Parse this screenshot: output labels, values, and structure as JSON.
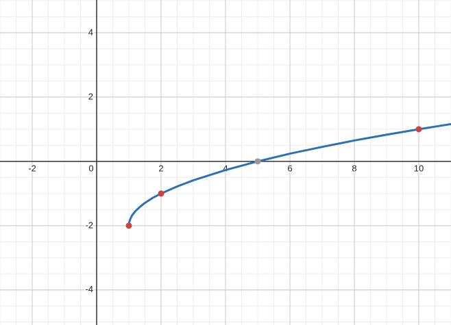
{
  "chart_data": {
    "type": "line",
    "x": [
      1,
      1.01,
      1.05,
      1.1,
      1.2,
      1.35,
      1.5,
      1.75,
      2,
      2.5,
      3,
      4,
      5,
      6,
      7,
      8,
      9,
      10,
      11
    ],
    "values": [
      -2,
      -1.9,
      -1.78,
      -1.68,
      -1.55,
      -1.41,
      -1.29,
      -1.13,
      -1,
      -0.78,
      -0.59,
      -0.27,
      0,
      0.24,
      0.45,
      0.65,
      0.83,
      1,
      1.16
    ],
    "color": "#2d70b3",
    "points": {
      "x": [
        1,
        2,
        5,
        10
      ],
      "values": [
        -2,
        -1,
        0,
        1
      ],
      "colors": [
        "#c74440",
        "#c74440",
        "#999999",
        "#c74440"
      ]
    },
    "xlim": [
      -3,
      11
    ],
    "ylim": [
      -5.09,
      5.02
    ],
    "xticks": [
      -2,
      0,
      2,
      4,
      6,
      8,
      10
    ],
    "yticks": [
      -4,
      -2,
      2,
      4
    ],
    "grid": true
  }
}
